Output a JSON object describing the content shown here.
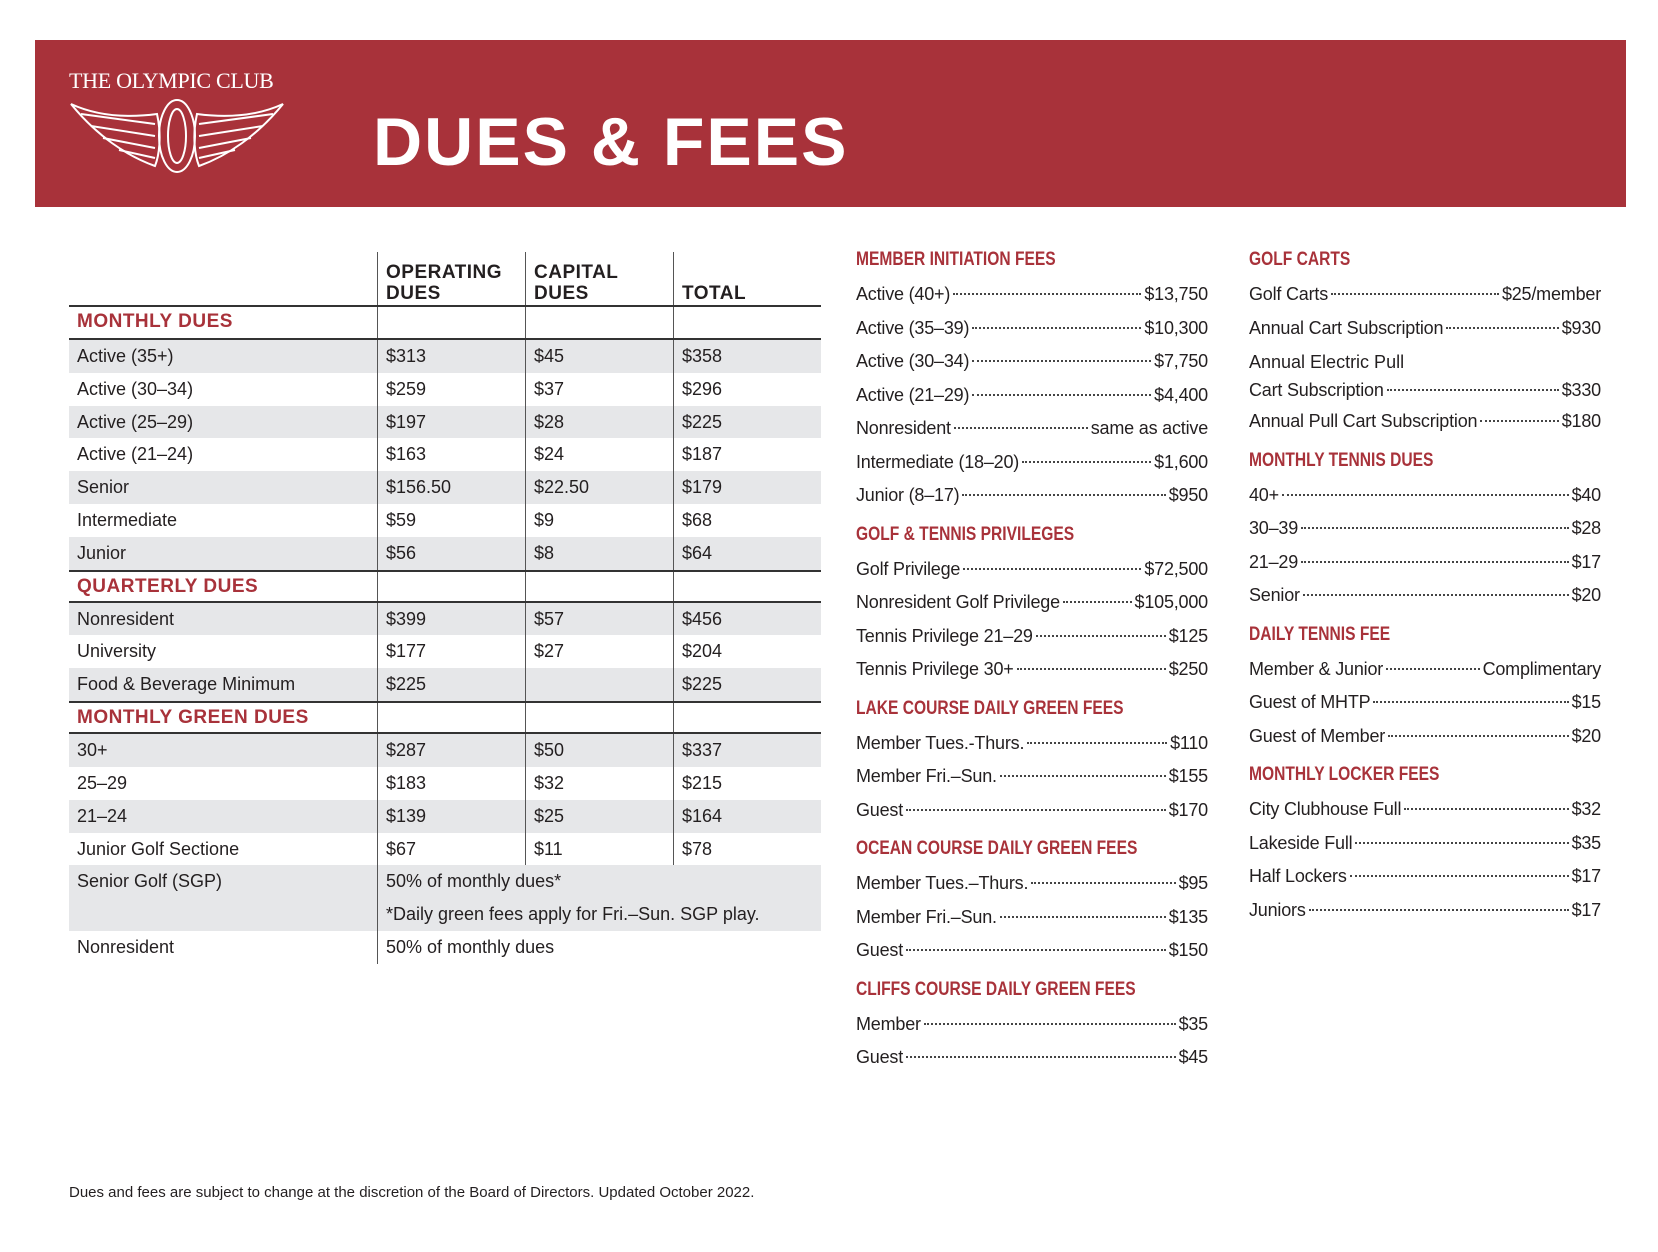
{
  "header": {
    "logo_text": "THE OLYMPIC CLUB",
    "title": "DUES & FEES",
    "band_color": "#a8323a"
  },
  "dues_table": {
    "columns": [
      "",
      "OPERATING DUES",
      "CAPITAL DUES",
      "TOTAL"
    ],
    "sections": [
      {
        "title": "MONTHLY DUES",
        "rows": [
          {
            "label": "Active (35+)",
            "operating": "$313",
            "capital": "$45",
            "total": "$358"
          },
          {
            "label": "Active (30–34)",
            "operating": "$259",
            "capital": "$37",
            "total": "$296"
          },
          {
            "label": "Active (25–29)",
            "operating": "$197",
            "capital": "$28",
            "total": "$225"
          },
          {
            "label": "Active (21–24)",
            "operating": "$163",
            "capital": "$24",
            "total": "$187"
          },
          {
            "label": "Senior",
            "operating": "$156.50",
            "capital": "$22.50",
            "total": "$179"
          },
          {
            "label": "Intermediate",
            "operating": "$59",
            "capital": "$9",
            "total": "$68"
          },
          {
            "label": "Junior",
            "operating": "$56",
            "capital": "$8",
            "total": "$64"
          }
        ]
      },
      {
        "title": "QUARTERLY DUES",
        "rows": [
          {
            "label": "Nonresident",
            "operating": "$399",
            "capital": "$57",
            "total": "$456"
          },
          {
            "label": "University",
            "operating": "$177",
            "capital": "$27",
            "total": "$204"
          },
          {
            "label": "Food & Beverage Minimum",
            "operating": "$225",
            "capital": "",
            "total": "$225"
          }
        ]
      },
      {
        "title": "MONTHLY GREEN DUES",
        "rows": [
          {
            "label": "30+",
            "operating": "$287",
            "capital": "$50",
            "total": "$337"
          },
          {
            "label": "25–29",
            "operating": "$183",
            "capital": "$32",
            "total": "$215"
          },
          {
            "label": "21–24",
            "operating": "$139",
            "capital": "$25",
            "total": "$164"
          },
          {
            "label": "Junior Golf Sectione",
            "operating": "$67",
            "capital": "$11",
            "total": "$78"
          },
          {
            "label": "Senior Golf (SGP)",
            "note": "50% of monthly dues*",
            "shade_group": 1
          },
          {
            "label": "",
            "note": "*Daily green fees apply for Fri.–Sun. SGP play.",
            "shade_group": 1
          },
          {
            "label": "Nonresident",
            "note": "50% of monthly dues",
            "shade_group": 0
          }
        ]
      }
    ]
  },
  "middle_column": [
    {
      "title": "MEMBER INITIATION FEES",
      "items": [
        {
          "label": "Active (40+)",
          "value": "$13,750"
        },
        {
          "label": "Active (35–39)",
          "value": "$10,300"
        },
        {
          "label": "Active (30–34)",
          "value": "$7,750"
        },
        {
          "label": "Active (21–29)",
          "value": "$4,400"
        },
        {
          "label": "Nonresident",
          "value": "same as active"
        },
        {
          "label": "Intermediate (18–20)",
          "value": "$1,600"
        },
        {
          "label": "Junior (8–17)",
          "value": "$950"
        }
      ]
    },
    {
      "title": "GOLF & TENNIS PRIVILEGES",
      "items": [
        {
          "label": "Golf Privilege",
          "value": "$72,500"
        },
        {
          "label": "Nonresident Golf Privilege",
          "value": "$105,000"
        },
        {
          "label": "Tennis Privilege 21–29",
          "value": "$125"
        },
        {
          "label": "Tennis Privilege 30+",
          "value": "$250"
        }
      ]
    },
    {
      "title": "LAKE COURSE DAILY GREEN FEES",
      "items": [
        {
          "label": "Member Tues.-Thurs.",
          "value": "$110"
        },
        {
          "label": "Member Fri.–Sun.",
          "value": "$155"
        },
        {
          "label": "Guest",
          "value": "$170"
        }
      ]
    },
    {
      "title": "OCEAN COURSE DAILY GREEN FEES",
      "items": [
        {
          "label": "Member Tues.–Thurs.",
          "value": "$95"
        },
        {
          "label": "Member Fri.–Sun.",
          "value": "$135"
        },
        {
          "label": "Guest",
          "value": "$150"
        }
      ]
    },
    {
      "title": "CLIFFS COURSE DAILY GREEN FEES",
      "items": [
        {
          "label": "Member",
          "value": "$35"
        },
        {
          "label": "Guest",
          "value": "$45"
        }
      ]
    }
  ],
  "right_column": [
    {
      "title": "GOLF CARTS",
      "items": [
        {
          "label": "Golf Carts",
          "value": "$25/member"
        },
        {
          "label": "Annual Cart Subscription",
          "value": "$930"
        },
        {
          "label_line1": "Annual Electric Pull",
          "label": "Cart Subscription",
          "value": "$330"
        },
        {
          "label": "Annual Pull Cart Subscription",
          "value": "$180"
        }
      ]
    },
    {
      "title": "MONTHLY TENNIS DUES",
      "items": [
        {
          "label": "40+",
          "value": "$40"
        },
        {
          "label": "30–39",
          "value": "$28"
        },
        {
          "label": "21–29",
          "value": "$17"
        },
        {
          "label": "Senior",
          "value": "$20"
        }
      ]
    },
    {
      "title": "DAILY TENNIS FEE",
      "items": [
        {
          "label": "Member & Junior",
          "value": "Complimentary"
        },
        {
          "label": "Guest of MHTP",
          "value": "$15"
        },
        {
          "label": "Guest of Member",
          "value": "$20"
        }
      ]
    },
    {
      "title": "MONTHLY LOCKER FEES",
      "items": [
        {
          "label": "City Clubhouse Full",
          "value": "$32"
        },
        {
          "label": "Lakeside Full",
          "value": "$35"
        },
        {
          "label": "Half Lockers",
          "value": "$17"
        },
        {
          "label": "Juniors",
          "value": "$17"
        }
      ]
    }
  ],
  "footer": "Dues and fees are subject to change at the discretion of the Board of Directors. Updated October 2022."
}
